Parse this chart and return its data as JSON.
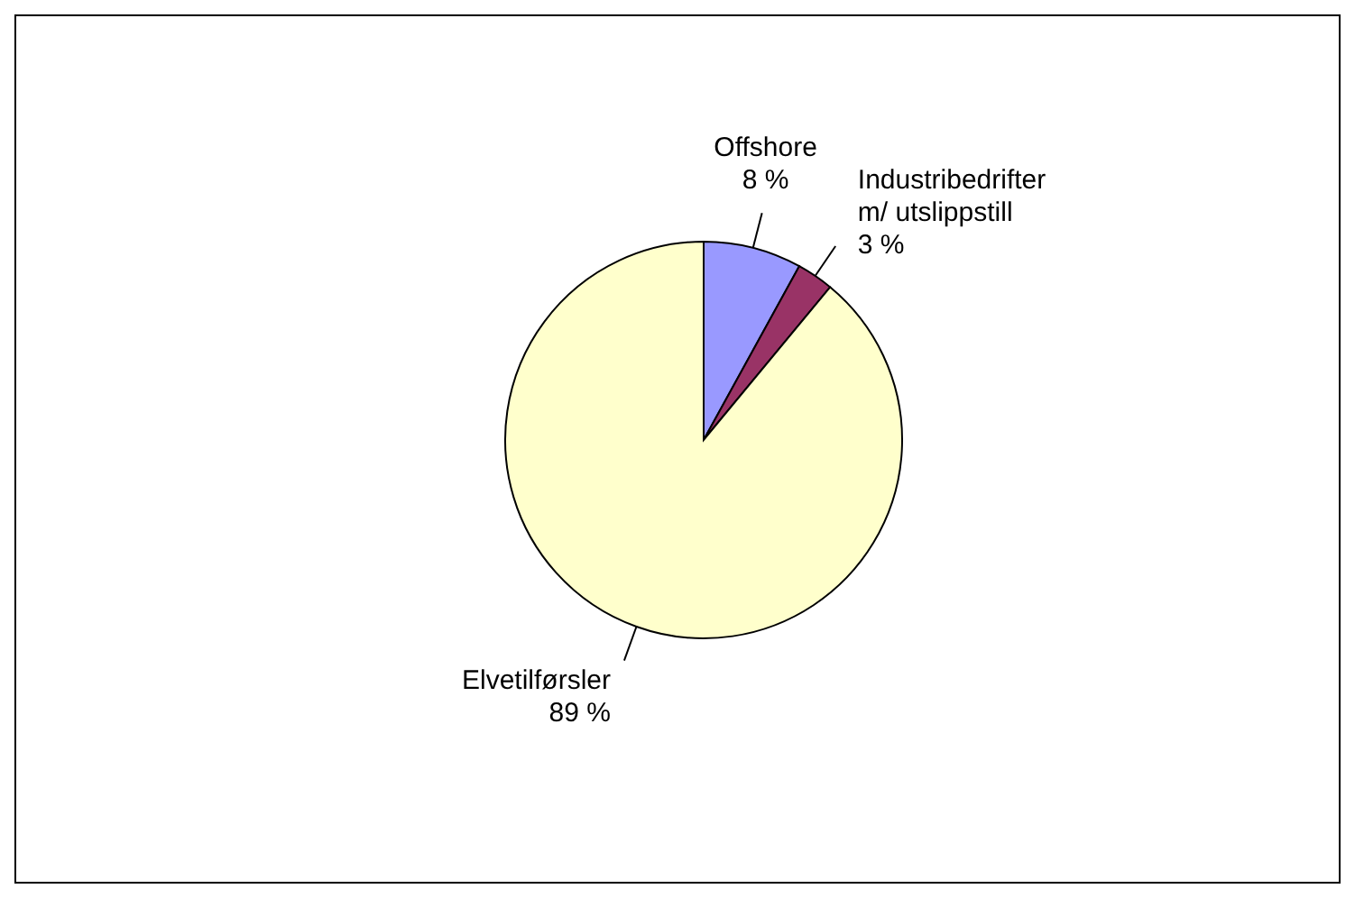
{
  "chart_data": {
    "type": "pie",
    "categories": [
      "Offshore",
      "Industribedrifter m/ utslippstill",
      "Elvetilførsler"
    ],
    "values": [
      8,
      3,
      89
    ],
    "colors": [
      "#9999ff",
      "#993366",
      "#ffffcc"
    ],
    "value_labels": [
      "8 %",
      "3 %",
      "89 %"
    ],
    "legend": false
  }
}
